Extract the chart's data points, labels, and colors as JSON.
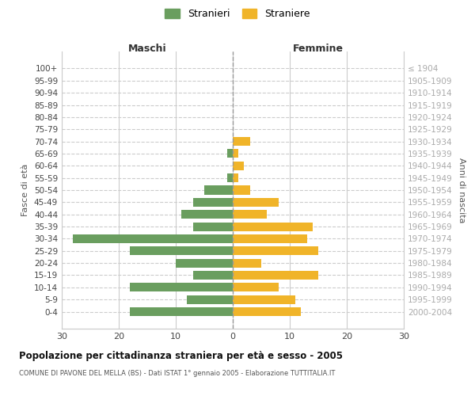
{
  "age_groups": [
    "100+",
    "95-99",
    "90-94",
    "85-89",
    "80-84",
    "75-79",
    "70-74",
    "65-69",
    "60-64",
    "55-59",
    "50-54",
    "45-49",
    "40-44",
    "35-39",
    "30-34",
    "25-29",
    "20-24",
    "15-19",
    "10-14",
    "5-9",
    "0-4"
  ],
  "birth_years": [
    "≤ 1904",
    "1905-1909",
    "1910-1914",
    "1915-1919",
    "1920-1924",
    "1925-1929",
    "1930-1934",
    "1935-1939",
    "1940-1944",
    "1945-1949",
    "1950-1954",
    "1955-1959",
    "1960-1964",
    "1965-1969",
    "1970-1974",
    "1975-1979",
    "1980-1984",
    "1985-1989",
    "1990-1994",
    "1995-1999",
    "2000-2004"
  ],
  "males": [
    0,
    0,
    0,
    0,
    0,
    0,
    0,
    1,
    0,
    1,
    5,
    7,
    9,
    7,
    28,
    18,
    10,
    7,
    18,
    8,
    18
  ],
  "females": [
    0,
    0,
    0,
    0,
    0,
    0,
    3,
    1,
    2,
    1,
    3,
    8,
    6,
    14,
    13,
    15,
    5,
    15,
    8,
    11,
    12
  ],
  "male_color": "#6a9e5f",
  "female_color": "#f0b429",
  "background_color": "#ffffff",
  "grid_color": "#cccccc",
  "grid_style": "--",
  "title": "Popolazione per cittadinanza straniera per età e sesso - 2005",
  "subtitle": "COMUNE DI PAVONE DEL MELLA (BS) - Dati ISTAT 1° gennaio 2005 - Elaborazione TUTTITALIA.IT",
  "xlabel_left": "Maschi",
  "xlabel_right": "Femmine",
  "ylabel_left": "Fasce di età",
  "ylabel_right": "Anni di nascita",
  "legend_male": "Stranieri",
  "legend_female": "Straniere",
  "xlim": 30,
  "xtick_labels": [
    "30",
    "20",
    "10",
    "0",
    "10",
    "20",
    "30"
  ]
}
